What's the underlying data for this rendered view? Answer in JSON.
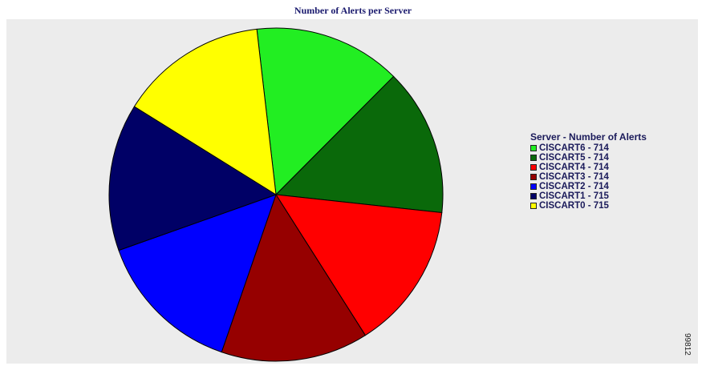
{
  "chart_data": {
    "type": "pie",
    "title": "Number of Alerts per Server",
    "legend_title": "Server - Number of Alerts",
    "legend_position": "right",
    "slices": [
      {
        "label": "CISCART6 - 714",
        "name": "CISCART6",
        "value": 714,
        "color": "#22ee22"
      },
      {
        "label": "CISCART5 - 714",
        "name": "CISCART5",
        "value": 714,
        "color": "#0a690a"
      },
      {
        "label": "CISCART4 - 714",
        "name": "CISCART4",
        "value": 714,
        "color": "#ff0000"
      },
      {
        "label": "CISCART3 - 714",
        "name": "CISCART3",
        "value": 714,
        "color": "#960000"
      },
      {
        "label": "CISCART2 - 714",
        "name": "CISCART2",
        "value": 714,
        "color": "#0000ff"
      },
      {
        "label": "CISCART1 - 715",
        "name": "CISCART1",
        "value": 715,
        "color": "#000066"
      },
      {
        "label": "CISCART0 - 715",
        "name": "CISCART0",
        "value": 715,
        "color": "#ffff00"
      }
    ]
  },
  "figure_id": "99812"
}
